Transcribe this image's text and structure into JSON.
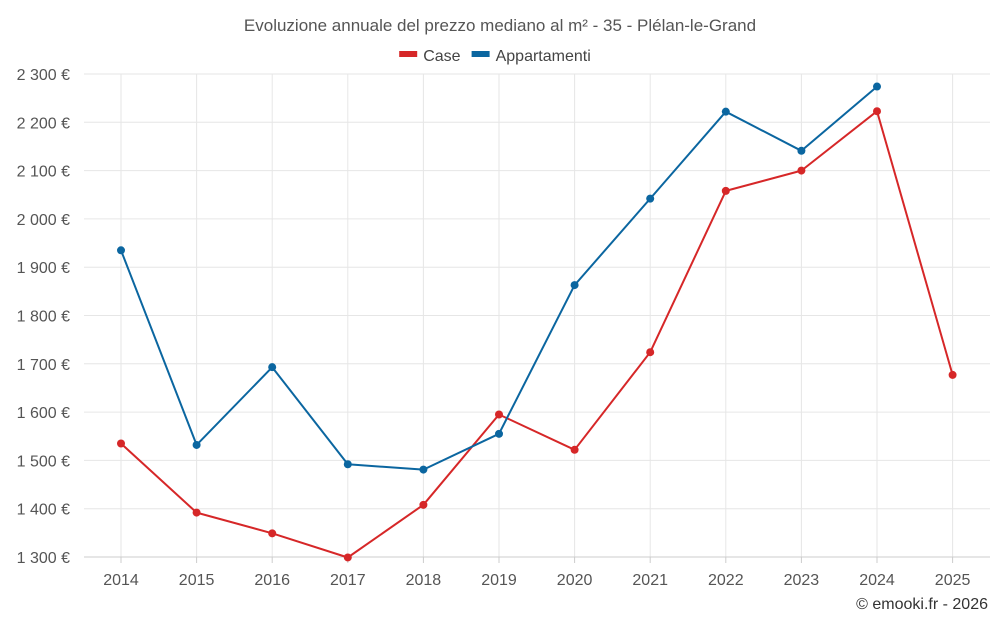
{
  "chart_data": {
    "type": "line",
    "title": "Evoluzione annuale del prezzo mediano al m² - 35 - Plélan-le-Grand",
    "x": [
      "2014",
      "2015",
      "2016",
      "2017",
      "2018",
      "2019",
      "2020",
      "2021",
      "2022",
      "2023",
      "2024",
      "2025"
    ],
    "ylim": [
      1300,
      2300
    ],
    "yticks": [
      1300,
      1400,
      1500,
      1600,
      1700,
      1800,
      1900,
      2000,
      2100,
      2200,
      2300
    ],
    "ytick_labels": [
      "1 300 €",
      "1 400 €",
      "1 500 €",
      "1 600 €",
      "1 700 €",
      "1 800 €",
      "1 900 €",
      "2 000 €",
      "2 100 €",
      "2 200 €",
      "2 300 €"
    ],
    "grid": true,
    "legend_position": "top-center",
    "series": [
      {
        "name": "Case",
        "color": "#d62728",
        "values": [
          1535,
          1392,
          1349,
          1299,
          1408,
          1595,
          1522,
          1724,
          2058,
          2100,
          2223,
          1677
        ]
      },
      {
        "name": "Appartamenti",
        "color": "#0b66a0",
        "values": [
          1935,
          1532,
          1693,
          1492,
          1481,
          1555,
          1863,
          2042,
          2222,
          2141,
          2274,
          null
        ]
      }
    ]
  },
  "credit": "© emooki.fr - 2026"
}
